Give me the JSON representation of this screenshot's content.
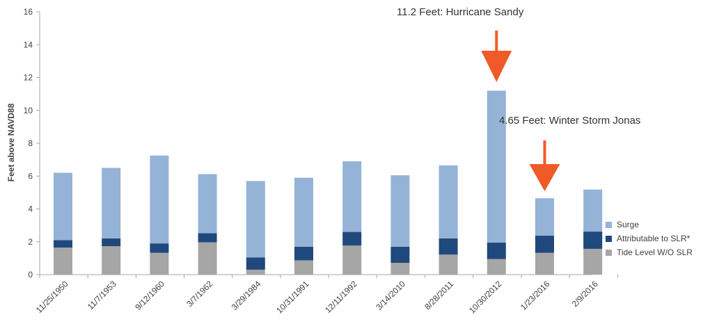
{
  "chart_data": {
    "type": "bar",
    "stacked": true,
    "categories": [
      "11/25/1950",
      "11/7/1953",
      "9/12/1960",
      "3/7/1962",
      "3/29/1984",
      "10/31/1991",
      "12/11/1992",
      "3/14/2010",
      "8/28/2011",
      "10/30/2012",
      "1/23/2016",
      "2/9/2016"
    ],
    "series": [
      {
        "name": "Tide Level W/O SLR",
        "color": "#a6a6a6",
        "values": [
          1.65,
          1.73,
          1.33,
          1.97,
          0.3,
          0.87,
          1.77,
          0.72,
          1.22,
          0.95,
          1.33,
          1.57
        ]
      },
      {
        "name": "Attributable to SLR*",
        "color": "#1f497d",
        "values": [
          0.45,
          0.47,
          0.57,
          0.55,
          0.75,
          0.83,
          0.83,
          0.98,
          0.98,
          1.0,
          1.04,
          1.05
        ]
      },
      {
        "name": "Surge",
        "color": "#95b3d7",
        "values": [
          4.1,
          4.3,
          5.35,
          3.6,
          4.65,
          4.2,
          4.3,
          4.35,
          4.45,
          9.25,
          2.28,
          2.56
        ]
      }
    ],
    "legend_order": [
      "Surge",
      "Attributable to SLR*",
      "Tide Level W/O SLR"
    ],
    "legend_position": "right",
    "ylabel": "Feet above NAVD88",
    "xlabel": "",
    "ylim": [
      0,
      16
    ],
    "yticks": [
      0,
      2,
      4,
      6,
      8,
      10,
      12,
      14,
      16
    ],
    "grid": false,
    "annotations": [
      {
        "text": "11.2 Feet:  Hurricane Sandy",
        "category": "10/30/2012",
        "value": 11.2,
        "arrow_color": "#f05a28"
      },
      {
        "text": "4.65 Feet:  Winter Storm Jonas",
        "category": "1/23/2016",
        "value": 4.65,
        "arrow_color": "#f05a28"
      }
    ]
  }
}
